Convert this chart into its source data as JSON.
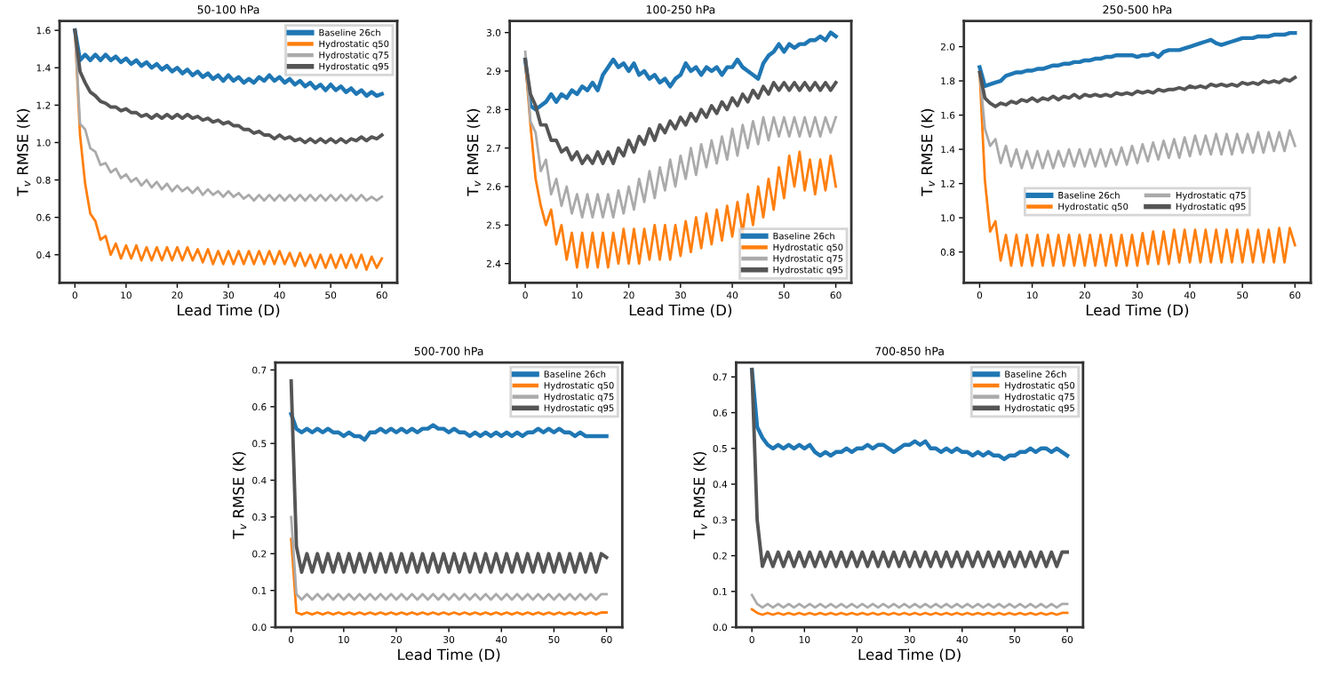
{
  "chart_data": [
    {
      "type": "line",
      "title": "50-100 hPa",
      "xlabel": "Lead Time (D)",
      "ylabel": "T$_{v}$ RMSE (K)",
      "xlim": [
        -3,
        63
      ],
      "xticks": [
        0,
        10,
        20,
        30,
        40,
        50,
        60
      ],
      "ylim": [
        0.25,
        1.65
      ],
      "yticks": [
        0.4,
        0.6,
        0.8,
        {
          "value": 1,
          "label": "1.0"
        },
        1.2,
        1.4,
        1.6
      ],
      "grid": false,
      "legend": "top right",
      "x": [
        0,
        1,
        2,
        3,
        4,
        5,
        6,
        7,
        8,
        9,
        10,
        11,
        12,
        13,
        14,
        15,
        16,
        17,
        18,
        19,
        20,
        21,
        22,
        23,
        24,
        25,
        26,
        27,
        28,
        29,
        30,
        31,
        32,
        33,
        34,
        35,
        36,
        37,
        38,
        39,
        40,
        41,
        42,
        43,
        44,
        45,
        46,
        47,
        48,
        49,
        50,
        51,
        52,
        53,
        54,
        55,
        56,
        57,
        58,
        59,
        60
      ],
      "series": [
        {
          "name": "Baseline 26ch",
          "color": "#1f77b4",
          "values": [
            1.6,
            1.44,
            1.47,
            1.44,
            1.47,
            1.44,
            1.47,
            1.44,
            1.46,
            1.43,
            1.45,
            1.42,
            1.44,
            1.41,
            1.43,
            1.4,
            1.42,
            1.39,
            1.41,
            1.38,
            1.4,
            1.37,
            1.39,
            1.36,
            1.38,
            1.35,
            1.37,
            1.34,
            1.36,
            1.33,
            1.36,
            1.33,
            1.35,
            1.32,
            1.34,
            1.32,
            1.35,
            1.33,
            1.36,
            1.33,
            1.35,
            1.32,
            1.34,
            1.31,
            1.33,
            1.3,
            1.32,
            1.29,
            1.31,
            1.28,
            1.31,
            1.28,
            1.3,
            1.27,
            1.29,
            1.26,
            1.28,
            1.25,
            1.27,
            1.25,
            1.26
          ]
        },
        {
          "name": "Hydrostatic q50",
          "color": "#ff7f0e",
          "values": [
            1.6,
            1.04,
            0.78,
            0.62,
            0.58,
            0.48,
            0.5,
            0.4,
            0.46,
            0.38,
            0.45,
            0.38,
            0.45,
            0.37,
            0.44,
            0.37,
            0.44,
            0.37,
            0.44,
            0.37,
            0.44,
            0.37,
            0.44,
            0.37,
            0.43,
            0.36,
            0.43,
            0.35,
            0.42,
            0.35,
            0.42,
            0.35,
            0.42,
            0.35,
            0.42,
            0.35,
            0.42,
            0.35,
            0.42,
            0.35,
            0.42,
            0.35,
            0.41,
            0.34,
            0.41,
            0.34,
            0.4,
            0.33,
            0.4,
            0.33,
            0.4,
            0.33,
            0.4,
            0.33,
            0.4,
            0.33,
            0.4,
            0.32,
            0.39,
            0.33,
            0.38
          ]
        },
        {
          "name": "Hydrostatic q75",
          "color": "#aaaaaa",
          "values": [
            1.6,
            1.1,
            1.07,
            0.97,
            0.95,
            0.88,
            0.89,
            0.84,
            0.86,
            0.81,
            0.83,
            0.79,
            0.81,
            0.77,
            0.8,
            0.76,
            0.79,
            0.75,
            0.78,
            0.74,
            0.77,
            0.74,
            0.76,
            0.73,
            0.76,
            0.72,
            0.75,
            0.72,
            0.74,
            0.71,
            0.74,
            0.71,
            0.73,
            0.7,
            0.72,
            0.69,
            0.72,
            0.69,
            0.72,
            0.69,
            0.72,
            0.69,
            0.72,
            0.69,
            0.72,
            0.69,
            0.72,
            0.69,
            0.72,
            0.69,
            0.72,
            0.69,
            0.72,
            0.69,
            0.72,
            0.69,
            0.72,
            0.69,
            0.71,
            0.69,
            0.71
          ]
        },
        {
          "name": "Hydrostatic q95",
          "color": "#555555",
          "values": [
            1.6,
            1.38,
            1.32,
            1.27,
            1.25,
            1.22,
            1.21,
            1.19,
            1.19,
            1.17,
            1.18,
            1.16,
            1.16,
            1.14,
            1.15,
            1.13,
            1.15,
            1.13,
            1.15,
            1.13,
            1.15,
            1.13,
            1.15,
            1.13,
            1.14,
            1.12,
            1.13,
            1.11,
            1.12,
            1.1,
            1.11,
            1.09,
            1.09,
            1.07,
            1.07,
            1.05,
            1.06,
            1.04,
            1.04,
            1.02,
            1.04,
            1.02,
            1.03,
            1.01,
            1.02,
            1.0,
            1.02,
            1.0,
            1.02,
            1.0,
            1.02,
            1.0,
            1.02,
            1.0,
            1.02,
            1.01,
            1.03,
            1.01,
            1.03,
            1.02,
            1.04
          ]
        }
      ]
    },
    {
      "type": "line",
      "title": "100-250 hPa",
      "xlabel": "Lead Time (D)",
      "ylabel": "T$_{v}$ RMSE (K)",
      "xlim": [
        -3,
        63
      ],
      "xticks": [
        0,
        10,
        20,
        30,
        40,
        50,
        60
      ],
      "ylim": [
        2.35,
        3.03
      ],
      "yticks": [
        2.4,
        2.5,
        2.6,
        2.7,
        2.8,
        2.9,
        {
          "value": 3,
          "label": "3.0"
        }
      ],
      "grid": false,
      "legend": "bottom right",
      "x": [
        0,
        1,
        2,
        3,
        4,
        5,
        6,
        7,
        8,
        9,
        10,
        11,
        12,
        13,
        14,
        15,
        16,
        17,
        18,
        19,
        20,
        21,
        22,
        23,
        24,
        25,
        26,
        27,
        28,
        29,
        30,
        31,
        32,
        33,
        34,
        35,
        36,
        37,
        38,
        39,
        40,
        41,
        42,
        43,
        44,
        45,
        46,
        47,
        48,
        49,
        50,
        51,
        52,
        53,
        54,
        55,
        56,
        57,
        58,
        59,
        60
      ],
      "series": [
        {
          "name": "Baseline 26ch",
          "color": "#1f77b4",
          "values": [
            2.93,
            2.81,
            2.8,
            2.81,
            2.82,
            2.84,
            2.82,
            2.84,
            2.83,
            2.85,
            2.84,
            2.86,
            2.85,
            2.87,
            2.85,
            2.89,
            2.91,
            2.93,
            2.91,
            2.92,
            2.9,
            2.92,
            2.89,
            2.9,
            2.88,
            2.89,
            2.87,
            2.88,
            2.86,
            2.88,
            2.89,
            2.92,
            2.9,
            2.91,
            2.89,
            2.91,
            2.9,
            2.91,
            2.89,
            2.91,
            2.91,
            2.93,
            2.91,
            2.9,
            2.89,
            2.88,
            2.92,
            2.94,
            2.95,
            2.97,
            2.95,
            2.97,
            2.96,
            2.97,
            2.97,
            2.98,
            2.98,
            2.99,
            2.98,
            3.0,
            2.99
          ]
        },
        {
          "name": "Hydrostatic q50",
          "color": "#ff7f0e",
          "values": [
            2.93,
            2.76,
            2.62,
            2.55,
            2.5,
            2.54,
            2.45,
            2.5,
            2.41,
            2.48,
            2.39,
            2.48,
            2.39,
            2.48,
            2.39,
            2.48,
            2.39,
            2.48,
            2.4,
            2.49,
            2.4,
            2.49,
            2.4,
            2.49,
            2.41,
            2.5,
            2.41,
            2.5,
            2.41,
            2.5,
            2.42,
            2.51,
            2.43,
            2.52,
            2.44,
            2.53,
            2.45,
            2.54,
            2.46,
            2.55,
            2.47,
            2.56,
            2.48,
            2.58,
            2.5,
            2.6,
            2.52,
            2.62,
            2.54,
            2.65,
            2.57,
            2.68,
            2.6,
            2.69,
            2.59,
            2.67,
            2.58,
            2.67,
            2.59,
            2.68,
            2.6
          ]
        },
        {
          "name": "Hydrostatic q75",
          "color": "#aaaaaa",
          "values": [
            2.95,
            2.77,
            2.74,
            2.64,
            2.67,
            2.58,
            2.62,
            2.55,
            2.6,
            2.53,
            2.58,
            2.52,
            2.58,
            2.52,
            2.58,
            2.52,
            2.58,
            2.52,
            2.59,
            2.53,
            2.6,
            2.54,
            2.62,
            2.56,
            2.64,
            2.57,
            2.65,
            2.59,
            2.67,
            2.6,
            2.68,
            2.62,
            2.7,
            2.63,
            2.71,
            2.65,
            2.72,
            2.66,
            2.73,
            2.67,
            2.75,
            2.68,
            2.76,
            2.7,
            2.77,
            2.71,
            2.78,
            2.72,
            2.78,
            2.73,
            2.78,
            2.73,
            2.78,
            2.73,
            2.78,
            2.73,
            2.78,
            2.73,
            2.78,
            2.74,
            2.78
          ]
        },
        {
          "name": "Hydrostatic q95",
          "color": "#555555",
          "values": [
            2.93,
            2.84,
            2.81,
            2.76,
            2.76,
            2.72,
            2.72,
            2.69,
            2.7,
            2.67,
            2.69,
            2.66,
            2.68,
            2.66,
            2.69,
            2.66,
            2.69,
            2.66,
            2.7,
            2.68,
            2.72,
            2.69,
            2.73,
            2.71,
            2.75,
            2.72,
            2.76,
            2.74,
            2.77,
            2.75,
            2.78,
            2.76,
            2.79,
            2.77,
            2.8,
            2.78,
            2.81,
            2.79,
            2.82,
            2.8,
            2.83,
            2.81,
            2.84,
            2.82,
            2.85,
            2.83,
            2.86,
            2.84,
            2.87,
            2.85,
            2.87,
            2.85,
            2.87,
            2.85,
            2.87,
            2.85,
            2.87,
            2.85,
            2.87,
            2.85,
            2.87
          ]
        }
      ]
    },
    {
      "type": "line",
      "title": "250-500 hPa",
      "xlabel": "Lead Time (D)",
      "ylabel": "T$_{v}$ RMSE (K)",
      "xlim": [
        -3,
        63
      ],
      "xticks": [
        0,
        10,
        20,
        30,
        40,
        50,
        60
      ],
      "ylim": [
        0.62,
        2.15
      ],
      "yticks": [
        0.8,
        {
          "value": 1,
          "label": "1.0"
        },
        1.2,
        1.4,
        1.6,
        1.8,
        {
          "value": 2,
          "label": "2.0"
        }
      ],
      "grid": false,
      "legend": "center",
      "x": [
        0,
        1,
        2,
        3,
        4,
        5,
        6,
        7,
        8,
        9,
        10,
        11,
        12,
        13,
        14,
        15,
        16,
        17,
        18,
        19,
        20,
        21,
        22,
        23,
        24,
        25,
        26,
        27,
        28,
        29,
        30,
        31,
        32,
        33,
        34,
        35,
        36,
        37,
        38,
        39,
        40,
        41,
        42,
        43,
        44,
        45,
        46,
        47,
        48,
        49,
        50,
        51,
        52,
        53,
        54,
        55,
        56,
        57,
        58,
        59,
        60
      ],
      "series": [
        {
          "name": "Baseline 26ch",
          "color": "#1f77b4",
          "values": [
            1.88,
            1.77,
            1.78,
            1.79,
            1.8,
            1.83,
            1.84,
            1.85,
            1.85,
            1.86,
            1.86,
            1.87,
            1.87,
            1.88,
            1.89,
            1.89,
            1.9,
            1.9,
            1.91,
            1.91,
            1.92,
            1.92,
            1.93,
            1.93,
            1.94,
            1.94,
            1.95,
            1.95,
            1.95,
            1.95,
            1.94,
            1.95,
            1.95,
            1.96,
            1.94,
            1.97,
            1.98,
            1.98,
            1.98,
            1.99,
            2.0,
            2.01,
            2.02,
            2.03,
            2.04,
            2.02,
            2.01,
            2.02,
            2.03,
            2.04,
            2.05,
            2.05,
            2.05,
            2.06,
            2.06,
            2.06,
            2.07,
            2.07,
            2.07,
            2.08,
            2.08
          ]
        },
        {
          "name": "Hydrostatic q50",
          "color": "#ff7f0e",
          "values": [
            1.85,
            1.22,
            0.92,
            0.98,
            0.75,
            0.9,
            0.72,
            0.9,
            0.72,
            0.9,
            0.72,
            0.9,
            0.72,
            0.9,
            0.72,
            0.9,
            0.72,
            0.9,
            0.72,
            0.9,
            0.72,
            0.9,
            0.72,
            0.9,
            0.72,
            0.9,
            0.72,
            0.9,
            0.72,
            0.9,
            0.72,
            0.91,
            0.73,
            0.92,
            0.73,
            0.92,
            0.73,
            0.93,
            0.74,
            0.93,
            0.74,
            0.93,
            0.74,
            0.93,
            0.74,
            0.93,
            0.74,
            0.93,
            0.74,
            0.93,
            0.74,
            0.93,
            0.74,
            0.93,
            0.74,
            0.93,
            0.74,
            0.94,
            0.74,
            0.94,
            0.84
          ]
        },
        {
          "name": "Hydrostatic q75",
          "color": "#aaaaaa",
          "values": [
            1.85,
            1.52,
            1.42,
            1.46,
            1.32,
            1.42,
            1.3,
            1.4,
            1.29,
            1.39,
            1.29,
            1.39,
            1.29,
            1.39,
            1.29,
            1.39,
            1.3,
            1.4,
            1.3,
            1.4,
            1.3,
            1.4,
            1.3,
            1.4,
            1.3,
            1.4,
            1.31,
            1.41,
            1.31,
            1.42,
            1.32,
            1.43,
            1.33,
            1.44,
            1.34,
            1.45,
            1.35,
            1.46,
            1.35,
            1.47,
            1.36,
            1.48,
            1.37,
            1.48,
            1.37,
            1.49,
            1.37,
            1.49,
            1.37,
            1.49,
            1.38,
            1.49,
            1.38,
            1.5,
            1.38,
            1.5,
            1.39,
            1.5,
            1.39,
            1.51,
            1.42
          ]
        },
        {
          "name": "Hydrostatic q95",
          "color": "#555555",
          "values": [
            1.85,
            1.7,
            1.67,
            1.65,
            1.67,
            1.66,
            1.68,
            1.67,
            1.69,
            1.68,
            1.7,
            1.68,
            1.7,
            1.69,
            1.71,
            1.69,
            1.71,
            1.7,
            1.72,
            1.7,
            1.72,
            1.71,
            1.72,
            1.71,
            1.72,
            1.71,
            1.73,
            1.72,
            1.73,
            1.72,
            1.74,
            1.73,
            1.74,
            1.73,
            1.75,
            1.74,
            1.75,
            1.75,
            1.76,
            1.75,
            1.77,
            1.76,
            1.77,
            1.76,
            1.78,
            1.77,
            1.78,
            1.77,
            1.78,
            1.77,
            1.79,
            1.78,
            1.79,
            1.78,
            1.8,
            1.79,
            1.8,
            1.79,
            1.81,
            1.8,
            1.82
          ]
        }
      ]
    },
    {
      "type": "line",
      "title": "500-700 hPa",
      "xlabel": "Lead Time (D)",
      "ylabel": "T$_{v}$ RMSE (K)",
      "xlim": [
        -3,
        63
      ],
      "xticks": [
        0,
        10,
        20,
        30,
        40,
        50,
        60
      ],
      "ylim": [
        0,
        0.72
      ],
      "yticks": [
        {
          "value": 0,
          "label": "0.0"
        },
        0.1,
        0.2,
        0.3,
        0.4,
        0.5,
        0.6,
        0.7
      ],
      "grid": false,
      "legend": "top right",
      "x": [
        0,
        1,
        2,
        3,
        4,
        5,
        6,
        7,
        8,
        9,
        10,
        11,
        12,
        13,
        14,
        15,
        16,
        17,
        18,
        19,
        20,
        21,
        22,
        23,
        24,
        25,
        26,
        27,
        28,
        29,
        30,
        31,
        32,
        33,
        34,
        35,
        36,
        37,
        38,
        39,
        40,
        41,
        42,
        43,
        44,
        45,
        46,
        47,
        48,
        49,
        50,
        51,
        52,
        53,
        54,
        55,
        56,
        57,
        58,
        59,
        60
      ],
      "series": [
        {
          "name": "Baseline 26ch",
          "color": "#1f77b4",
          "values": [
            0.58,
            0.54,
            0.53,
            0.54,
            0.53,
            0.54,
            0.53,
            0.54,
            0.53,
            0.53,
            0.52,
            0.53,
            0.52,
            0.52,
            0.51,
            0.53,
            0.53,
            0.54,
            0.53,
            0.54,
            0.53,
            0.54,
            0.53,
            0.54,
            0.53,
            0.54,
            0.54,
            0.55,
            0.54,
            0.54,
            0.53,
            0.54,
            0.53,
            0.53,
            0.52,
            0.53,
            0.52,
            0.53,
            0.52,
            0.53,
            0.52,
            0.53,
            0.52,
            0.53,
            0.52,
            0.53,
            0.53,
            0.54,
            0.53,
            0.54,
            0.53,
            0.54,
            0.53,
            0.53,
            0.52,
            0.53,
            0.52,
            0.52,
            0.52,
            0.52,
            0.52
          ]
        },
        {
          "name": "Hydrostatic q50",
          "color": "#ff7f0e",
          "values": [
            0.24,
            0.04,
            0.035,
            0.04,
            0.035,
            0.04,
            0.035,
            0.04,
            0.035,
            0.04,
            0.035,
            0.04,
            0.035,
            0.04,
            0.035,
            0.04,
            0.035,
            0.04,
            0.035,
            0.04,
            0.035,
            0.04,
            0.035,
            0.04,
            0.035,
            0.04,
            0.035,
            0.04,
            0.035,
            0.04,
            0.035,
            0.04,
            0.035,
            0.04,
            0.035,
            0.04,
            0.035,
            0.04,
            0.035,
            0.04,
            0.035,
            0.04,
            0.035,
            0.04,
            0.035,
            0.04,
            0.035,
            0.04,
            0.035,
            0.04,
            0.035,
            0.04,
            0.035,
            0.04,
            0.035,
            0.04,
            0.035,
            0.04,
            0.035,
            0.04,
            0.04
          ]
        },
        {
          "name": "Hydrostatic q75",
          "color": "#aaaaaa",
          "values": [
            0.3,
            0.09,
            0.075,
            0.09,
            0.075,
            0.09,
            0.075,
            0.09,
            0.075,
            0.09,
            0.075,
            0.09,
            0.075,
            0.09,
            0.075,
            0.09,
            0.075,
            0.09,
            0.075,
            0.09,
            0.075,
            0.09,
            0.075,
            0.09,
            0.075,
            0.09,
            0.075,
            0.09,
            0.075,
            0.09,
            0.075,
            0.09,
            0.075,
            0.09,
            0.075,
            0.09,
            0.075,
            0.09,
            0.075,
            0.09,
            0.075,
            0.09,
            0.075,
            0.09,
            0.075,
            0.09,
            0.075,
            0.09,
            0.075,
            0.09,
            0.075,
            0.09,
            0.075,
            0.09,
            0.075,
            0.09,
            0.075,
            0.09,
            0.075,
            0.09,
            0.09
          ]
        },
        {
          "name": "Hydrostatic q95",
          "color": "#555555",
          "values": [
            0.67,
            0.22,
            0.15,
            0.2,
            0.15,
            0.2,
            0.15,
            0.2,
            0.15,
            0.2,
            0.15,
            0.2,
            0.15,
            0.2,
            0.15,
            0.2,
            0.15,
            0.2,
            0.15,
            0.2,
            0.15,
            0.2,
            0.15,
            0.2,
            0.15,
            0.2,
            0.15,
            0.2,
            0.15,
            0.2,
            0.15,
            0.2,
            0.15,
            0.2,
            0.15,
            0.2,
            0.15,
            0.2,
            0.15,
            0.2,
            0.15,
            0.2,
            0.15,
            0.2,
            0.15,
            0.2,
            0.15,
            0.2,
            0.15,
            0.2,
            0.15,
            0.2,
            0.15,
            0.2,
            0.15,
            0.2,
            0.15,
            0.2,
            0.15,
            0.2,
            0.19
          ]
        }
      ]
    },
    {
      "type": "line",
      "title": "700-850 hPa",
      "xlabel": "Lead Time (D)",
      "ylabel": "T$_{v}$ RMSE (K)",
      "xlim": [
        -3,
        63
      ],
      "xticks": [
        0,
        10,
        20,
        30,
        40,
        50,
        60
      ],
      "ylim": [
        0,
        0.74
      ],
      "yticks": [
        {
          "value": 0,
          "label": "0.0"
        },
        0.1,
        0.2,
        0.3,
        0.4,
        0.5,
        0.6,
        0.7
      ],
      "grid": false,
      "legend": "top right",
      "x": [
        0,
        1,
        2,
        3,
        4,
        5,
        6,
        7,
        8,
        9,
        10,
        11,
        12,
        13,
        14,
        15,
        16,
        17,
        18,
        19,
        20,
        21,
        22,
        23,
        24,
        25,
        26,
        27,
        28,
        29,
        30,
        31,
        32,
        33,
        34,
        35,
        36,
        37,
        38,
        39,
        40,
        41,
        42,
        43,
        44,
        45,
        46,
        47,
        48,
        49,
        50,
        51,
        52,
        53,
        54,
        55,
        56,
        57,
        58,
        59,
        60
      ],
      "series": [
        {
          "name": "Baseline 26ch",
          "color": "#1f77b4",
          "values": [
            0.72,
            0.56,
            0.53,
            0.51,
            0.5,
            0.51,
            0.5,
            0.51,
            0.5,
            0.51,
            0.5,
            0.51,
            0.49,
            0.48,
            0.49,
            0.48,
            0.49,
            0.49,
            0.5,
            0.49,
            0.5,
            0.5,
            0.51,
            0.5,
            0.51,
            0.51,
            0.5,
            0.49,
            0.5,
            0.51,
            0.51,
            0.52,
            0.51,
            0.52,
            0.5,
            0.5,
            0.49,
            0.5,
            0.49,
            0.5,
            0.49,
            0.49,
            0.48,
            0.49,
            0.48,
            0.49,
            0.48,
            0.48,
            0.47,
            0.48,
            0.48,
            0.49,
            0.49,
            0.5,
            0.49,
            0.5,
            0.5,
            0.49,
            0.5,
            0.49,
            0.48
          ]
        },
        {
          "name": "Hydrostatic q50",
          "color": "#ff7f0e",
          "values": [
            0.05,
            0.04,
            0.035,
            0.04,
            0.035,
            0.04,
            0.035,
            0.04,
            0.035,
            0.04,
            0.035,
            0.04,
            0.035,
            0.04,
            0.035,
            0.04,
            0.035,
            0.04,
            0.035,
            0.04,
            0.035,
            0.04,
            0.035,
            0.04,
            0.035,
            0.04,
            0.035,
            0.04,
            0.035,
            0.04,
            0.035,
            0.04,
            0.035,
            0.04,
            0.035,
            0.04,
            0.035,
            0.04,
            0.035,
            0.04,
            0.035,
            0.04,
            0.035,
            0.04,
            0.035,
            0.04,
            0.035,
            0.04,
            0.035,
            0.04,
            0.035,
            0.04,
            0.035,
            0.04,
            0.035,
            0.04,
            0.035,
            0.04,
            0.035,
            0.04,
            0.04
          ]
        },
        {
          "name": "Hydrostatic q75",
          "color": "#aaaaaa",
          "values": [
            0.09,
            0.065,
            0.055,
            0.065,
            0.055,
            0.065,
            0.055,
            0.065,
            0.055,
            0.065,
            0.055,
            0.065,
            0.055,
            0.065,
            0.055,
            0.065,
            0.055,
            0.065,
            0.055,
            0.065,
            0.055,
            0.065,
            0.055,
            0.065,
            0.055,
            0.065,
            0.055,
            0.065,
            0.055,
            0.065,
            0.055,
            0.065,
            0.055,
            0.065,
            0.055,
            0.065,
            0.055,
            0.065,
            0.055,
            0.065,
            0.055,
            0.065,
            0.055,
            0.065,
            0.055,
            0.065,
            0.055,
            0.065,
            0.055,
            0.065,
            0.055,
            0.065,
            0.055,
            0.065,
            0.055,
            0.065,
            0.055,
            0.065,
            0.055,
            0.065,
            0.065
          ]
        },
        {
          "name": "Hydrostatic q95",
          "color": "#555555",
          "values": [
            0.72,
            0.3,
            0.17,
            0.21,
            0.17,
            0.21,
            0.17,
            0.21,
            0.17,
            0.21,
            0.17,
            0.21,
            0.17,
            0.21,
            0.17,
            0.21,
            0.17,
            0.21,
            0.17,
            0.21,
            0.17,
            0.21,
            0.17,
            0.21,
            0.17,
            0.21,
            0.17,
            0.21,
            0.17,
            0.21,
            0.17,
            0.21,
            0.17,
            0.21,
            0.17,
            0.21,
            0.17,
            0.21,
            0.17,
            0.21,
            0.17,
            0.21,
            0.17,
            0.21,
            0.17,
            0.21,
            0.17,
            0.21,
            0.17,
            0.21,
            0.17,
            0.21,
            0.17,
            0.21,
            0.17,
            0.21,
            0.17,
            0.21,
            0.17,
            0.21,
            0.21
          ]
        }
      ]
    }
  ]
}
